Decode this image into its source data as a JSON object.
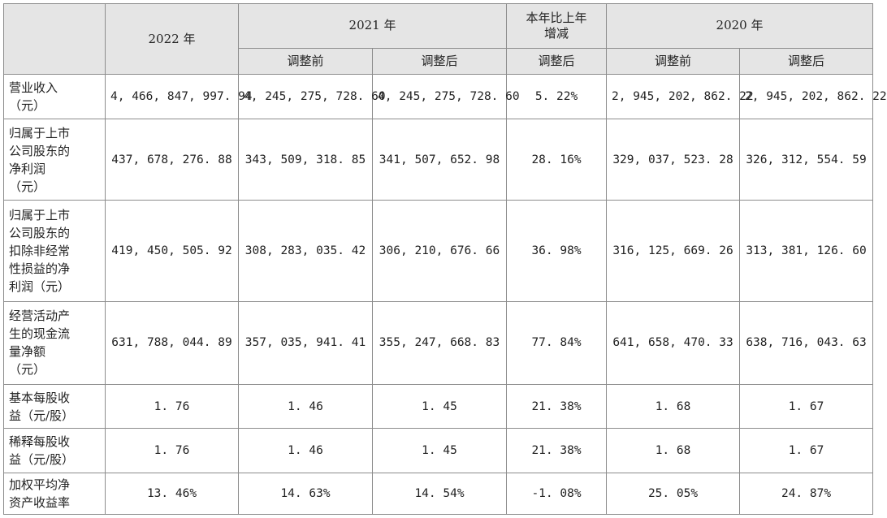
{
  "header": {
    "y2022": "2022 年",
    "y2021": "2021 年",
    "yoy": "本年比上年\n增减",
    "y2020": "2020 年",
    "before": "调整前",
    "after": "调整后",
    "yoy_sub": "调整后"
  },
  "rows": [
    {
      "label": "营业收入\n（元）",
      "v": [
        "4, 466, 847, 997. 94",
        "4, 245, 275, 728. 60",
        "4, 245, 275, 728. 60",
        "5. 22%",
        "2, 945, 202, 862. 22",
        "2, 945, 202, 862. 22"
      ]
    },
    {
      "label": "归属于上市\n公司股东的\n净利润\n（元）",
      "v": [
        "437, 678, 276. 88",
        "343, 509, 318. 85",
        "341, 507, 652. 98",
        "28. 16%",
        "329, 037, 523. 28",
        "326, 312, 554. 59"
      ]
    },
    {
      "label": "归属于上市\n公司股东的\n扣除非经常\n性损益的净\n利润（元）",
      "v": [
        "419, 450, 505. 92",
        "308, 283, 035. 42",
        "306, 210, 676. 66",
        "36. 98%",
        "316, 125, 669. 26",
        "313, 381, 126. 60"
      ]
    },
    {
      "label": "经营活动产\n生的现金流\n量净额\n（元）",
      "v": [
        "631, 788, 044. 89",
        "357, 035, 941. 41",
        "355, 247, 668. 83",
        "77. 84%",
        "641, 658, 470. 33",
        "638, 716, 043. 63"
      ]
    },
    {
      "label": "基本每股收\n益（元/股）",
      "v": [
        "1. 76",
        "1. 46",
        "1. 45",
        "21. 38%",
        "1. 68",
        "1. 67"
      ]
    },
    {
      "label": "稀释每股收\n益（元/股）",
      "v": [
        "1. 76",
        "1. 46",
        "1. 45",
        "21. 38%",
        "1. 68",
        "1. 67"
      ]
    },
    {
      "label": "加权平均净\n资产收益率",
      "v": [
        "13. 46%",
        "14. 63%",
        "14. 54%",
        "-1. 08%",
        "25. 05%",
        "24. 87%"
      ]
    }
  ]
}
